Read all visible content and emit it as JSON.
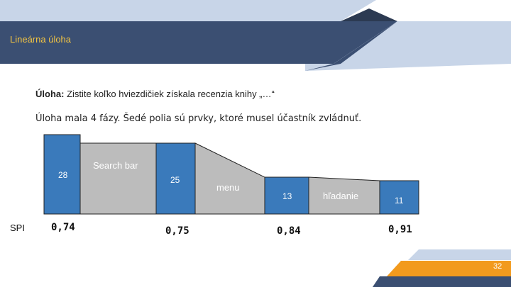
{
  "header": {
    "title": "Lineárna úloha"
  },
  "task": {
    "label": "Úloha:",
    "text": " Zistite koľko hviezdičiek získala recenzia knihy „…“"
  },
  "phases_note": "Úloha mala 4 fázy. Šedé polia sú prvky, ktoré musel účastník zvládnuť.",
  "phases": [
    {
      "count": "28",
      "spi": "0,74"
    },
    {
      "count": "25",
      "spi": "0,75"
    },
    {
      "count": "13",
      "spi": "0,84"
    },
    {
      "count": "11",
      "spi": "0,91"
    }
  ],
  "elements": [
    {
      "label": "Search bar"
    },
    {
      "label": "menu"
    },
    {
      "label": "hľadanie"
    }
  ],
  "spi_label": "SPI",
  "page_number": "32",
  "colors": {
    "header": "#3b4f72",
    "phase_blue": "#3a7abb",
    "element_gray": "#bcbcbc",
    "accent_orange": "#f29a1d",
    "light_blue": "#c8d5e8"
  }
}
